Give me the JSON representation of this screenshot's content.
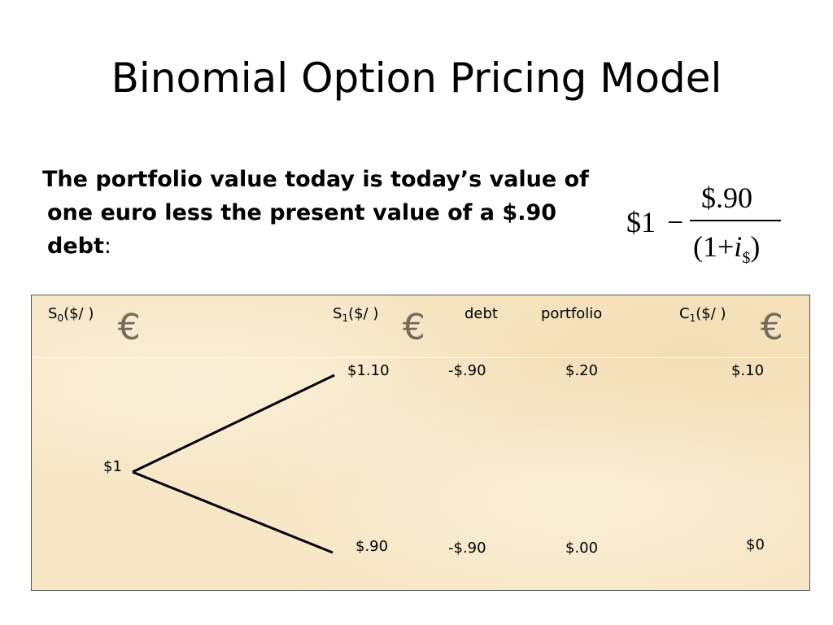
{
  "title": "Binomial Option Pricing Model",
  "body": {
    "line1": "The portfolio value today is today’s value of",
    "line2": "one euro less the present value of a $.90",
    "line3_bold": "debt",
    "line3_end": ":"
  },
  "formula": {
    "lhs": "$1",
    "minus": "−",
    "numerator": "$.90",
    "denominator_left": "(1+",
    "denominator_var": "i",
    "denominator_sub": "$",
    "denominator_right": ")"
  },
  "table": {
    "headers": {
      "s0": {
        "base": "S",
        "sub": "0",
        "rest": "($/  )"
      },
      "s1": {
        "base": "S",
        "sub": "1",
        "rest": "($/  )"
      },
      "debt": "debt",
      "portfolio": "portfolio",
      "c1": {
        "base": "C",
        "sub": "1",
        "rest": "($/   )"
      }
    },
    "euro_symbol": "€",
    "root": "$1",
    "up": {
      "s1": "$1.10",
      "debt": "-$.90",
      "portfolio": "$.20",
      "c1": "$.10"
    },
    "down": {
      "s1": "$.90",
      "debt": "-$.90",
      "portfolio": "$.00",
      "c1": "$0"
    }
  }
}
